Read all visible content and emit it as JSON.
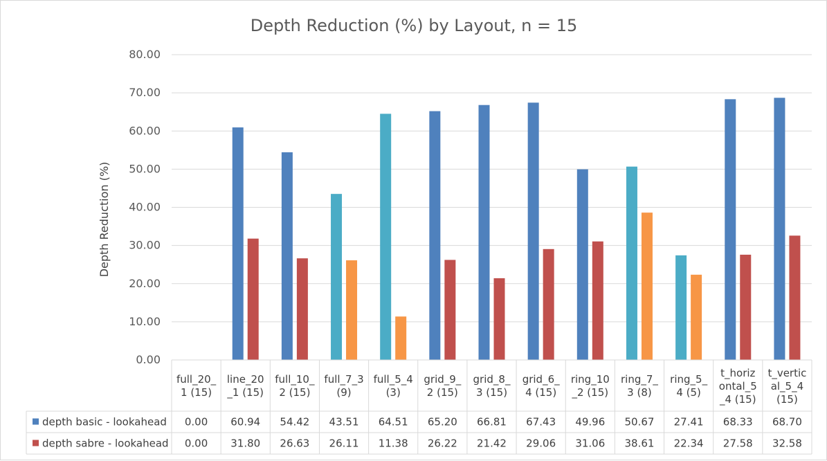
{
  "chart_data": {
    "type": "bar",
    "title": "Depth Reduction (%) by Layout, n = 15",
    "ylabel": "Depth Reduction (%)",
    "xlabel": "",
    "ylim": [
      0,
      80
    ],
    "yticks": [
      "0.00",
      "10.00",
      "20.00",
      "30.00",
      "40.00",
      "50.00",
      "60.00",
      "70.00",
      "80.00"
    ],
    "grid": true,
    "legend": "data-table",
    "categories": [
      [
        "full_20_",
        "1 (15)"
      ],
      [
        "line_20",
        "_1 (15)"
      ],
      [
        "full_10_",
        "2 (15)"
      ],
      [
        "full_7_3",
        "(9)"
      ],
      [
        "full_5_4",
        "(3)"
      ],
      [
        "grid_9_",
        "2 (15)"
      ],
      [
        "grid_8_",
        "3 (15)"
      ],
      [
        "grid_6_",
        "4 (15)"
      ],
      [
        "ring_10",
        "_2 (15)"
      ],
      [
        "ring_7_",
        "3 (8)"
      ],
      [
        "ring_5_",
        "4 (5)"
      ],
      [
        "t_horiz",
        "ontal_5",
        "_4 (15)"
      ],
      [
        "t_vertic",
        "al_5_4",
        "(15)"
      ]
    ],
    "series": [
      {
        "name": "depth basic - lookahead",
        "color": "#4F81BD",
        "values": [
          0.0,
          60.94,
          54.42,
          43.51,
          64.51,
          65.2,
          66.81,
          67.43,
          49.96,
          50.67,
          27.41,
          68.33,
          68.7
        ],
        "labels": [
          "0.00",
          "60.94",
          "54.42",
          "43.51",
          "64.51",
          "65.20",
          "66.81",
          "67.43",
          "49.96",
          "50.67",
          "27.41",
          "68.33",
          "68.70"
        ],
        "bar_colors": [
          "#4F81BD",
          "#4F81BD",
          "#4F81BD",
          "#4BACC6",
          "#4BACC6",
          "#4F81BD",
          "#4F81BD",
          "#4F81BD",
          "#4F81BD",
          "#4BACC6",
          "#4BACC6",
          "#4F81BD",
          "#4F81BD"
        ]
      },
      {
        "name": "depth sabre - lookahead",
        "color": "#C0504D",
        "values": [
          0.0,
          31.8,
          26.63,
          26.11,
          11.38,
          26.22,
          21.42,
          29.06,
          31.06,
          38.61,
          22.34,
          27.58,
          32.58
        ],
        "labels": [
          "0.00",
          "31.80",
          "26.63",
          "26.11",
          "11.38",
          "26.22",
          "21.42",
          "29.06",
          "31.06",
          "38.61",
          "22.34",
          "27.58",
          "32.58"
        ],
        "bar_colors": [
          "#C0504D",
          "#C0504D",
          "#C0504D",
          "#F79646",
          "#F79646",
          "#C0504D",
          "#C0504D",
          "#C0504D",
          "#C0504D",
          "#F79646",
          "#F79646",
          "#C0504D",
          "#C0504D"
        ]
      }
    ]
  }
}
